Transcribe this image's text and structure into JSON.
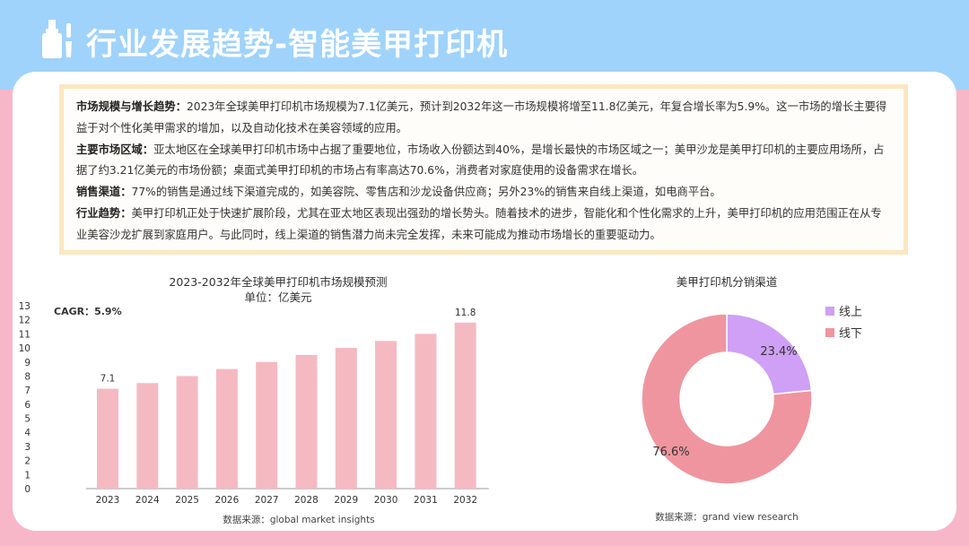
{
  "header": {
    "title": "行业发展趋势-智能美甲打印机"
  },
  "summary": [
    {
      "label": "市场规模与增长趋势：",
      "text": "2023年全球美甲打印机市场规模为7.1亿美元，预计到2032年这一市场规模将增至11.8亿美元，年复合增长率为5.9%。这一市场的增长主要得益于对个性化美甲需求的增加，以及自动化技术在美容领域的应用。"
    },
    {
      "label": "主要市场区域：",
      "text": "亚太地区在全球美甲打印机市场中占据了重要地位，市场收入份额达到40%，是增长最快的市场区域之一；美甲沙龙是美甲打印机的主要应用场所，占据了约3.21亿美元的市场份额；桌面式美甲打印机的市场占有率高达70.6%，消费者对家庭使用的设备需求在增长。"
    },
    {
      "label": "销售渠道：",
      "text": "77%的销售是通过线下渠道完成的，如美容院、零售店和沙龙设备供应商；另外23%的销售来自线上渠道，如电商平台。"
    },
    {
      "label": "行业趋势：",
      "text": "美甲打印机正处于快速扩展阶段，尤其在亚太地区表现出强劲的增长势头。随着技术的进步，智能化和个性化需求的上升，美甲打印机的应用范围正在从专业美容沙龙扩展到家庭用户。与此同时，线上渠道的销售潜力尚未完全发挥，未来可能成为推动市场增长的重要驱动力。"
    }
  ],
  "bar_chart": {
    "title": "2023-2032年全球美甲打印机市场规模预测",
    "subtitle": "单位：亿美元",
    "cagr": "CAGR：5.9%",
    "source": "数据来源：global market insights"
  },
  "pie_chart": {
    "title": "美甲打印机分销渠道",
    "source": "数据来源：grand view research"
  },
  "colors": {
    "bar": "#f5b9c2",
    "online": "#cfa0f5",
    "offline": "#ef959f",
    "header_bg": "#9fd3fb",
    "body_bg": "#f7b7c8"
  },
  "chart_data": [
    {
      "type": "bar",
      "title": "2023-2032年全球美甲打印机市场规模预测",
      "subtitle": "单位：亿美元",
      "categories": [
        "2023",
        "2024",
        "2025",
        "2026",
        "2027",
        "2028",
        "2029",
        "2030",
        "2031",
        "2032"
      ],
      "values": [
        7.1,
        7.5,
        8.0,
        8.5,
        9.0,
        9.5,
        10.0,
        10.5,
        11.0,
        11.8
      ],
      "data_labels": {
        "0": "7.1",
        "9": "11.8"
      },
      "yticks": [
        "0",
        "1",
        "2",
        "3",
        "4",
        "5",
        "6",
        "7",
        "8",
        "9",
        "10",
        "11",
        "12",
        "13"
      ],
      "ylim": [
        0,
        13
      ],
      "grid": false
    },
    {
      "type": "pie",
      "title": "美甲打印机分销渠道",
      "donut": true,
      "labels": [
        "线上",
        "线下"
      ],
      "values": [
        23.4,
        76.6
      ],
      "value_labels": [
        "23.4%",
        "76.6%"
      ],
      "legend_position": "top-right"
    }
  ]
}
